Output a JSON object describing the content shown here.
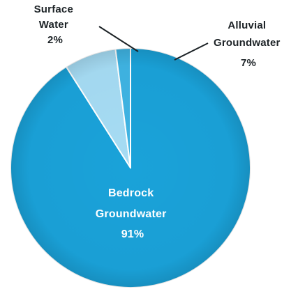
{
  "chart_data": {
    "type": "pie",
    "slices": [
      {
        "label_lines": [
          "Bedrock",
          "Groundwater"
        ],
        "value": 91,
        "value_label": "91%",
        "color": "#1aa2d9"
      },
      {
        "label_lines": [
          "Alluvial",
          "Groundwater"
        ],
        "value": 7,
        "value_label": "7%",
        "color": "#a6dcf4"
      },
      {
        "label_lines": [
          "Surface",
          "Water"
        ],
        "value": 2,
        "value_label": "2%",
        "color": "#3fb4e3"
      }
    ],
    "legend": "none"
  }
}
